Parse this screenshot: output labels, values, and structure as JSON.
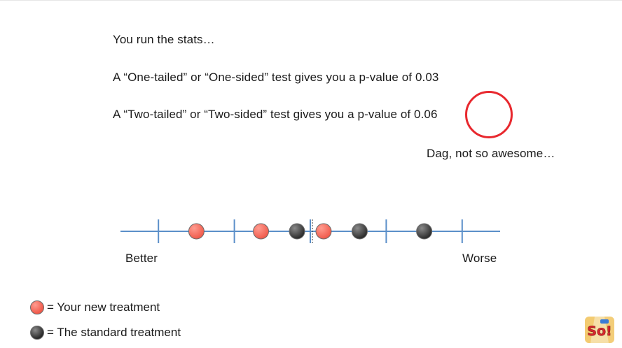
{
  "slide": {
    "line1": "You run the stats…",
    "line2": "A “One-tailed” or “One-sided” test gives you a p-value of 0.03",
    "line3": "A “Two-tailed” or “Two-sided” test gives you a p-value of 0.06",
    "line4": "Dag, not so awesome…",
    "highlight_color": "#e8282e"
  },
  "axis": {
    "left_label": "Better",
    "right_label": "Worse",
    "line_color": "#5b8fc9",
    "new_treatment_color": "#f05a4b",
    "standard_treatment_color": "#2a2a2a"
  },
  "chart_data": {
    "type": "scatter",
    "x_range": [
      0,
      10
    ],
    "center_tick": 5,
    "ticks": [
      1,
      3,
      5,
      7,
      9
    ],
    "series": [
      {
        "name": "Your new treatment",
        "x": [
          2,
          3.7,
          5.35
        ]
      },
      {
        "name": "The standard treatment",
        "x": [
          4.65,
          6.3,
          8
        ]
      }
    ],
    "xlabel_left": "Better",
    "xlabel_right": "Worse"
  },
  "legend": {
    "new_label": "= Your new treatment",
    "standard_label": "= The standard treatment"
  },
  "logo": {
    "text": "So!"
  }
}
